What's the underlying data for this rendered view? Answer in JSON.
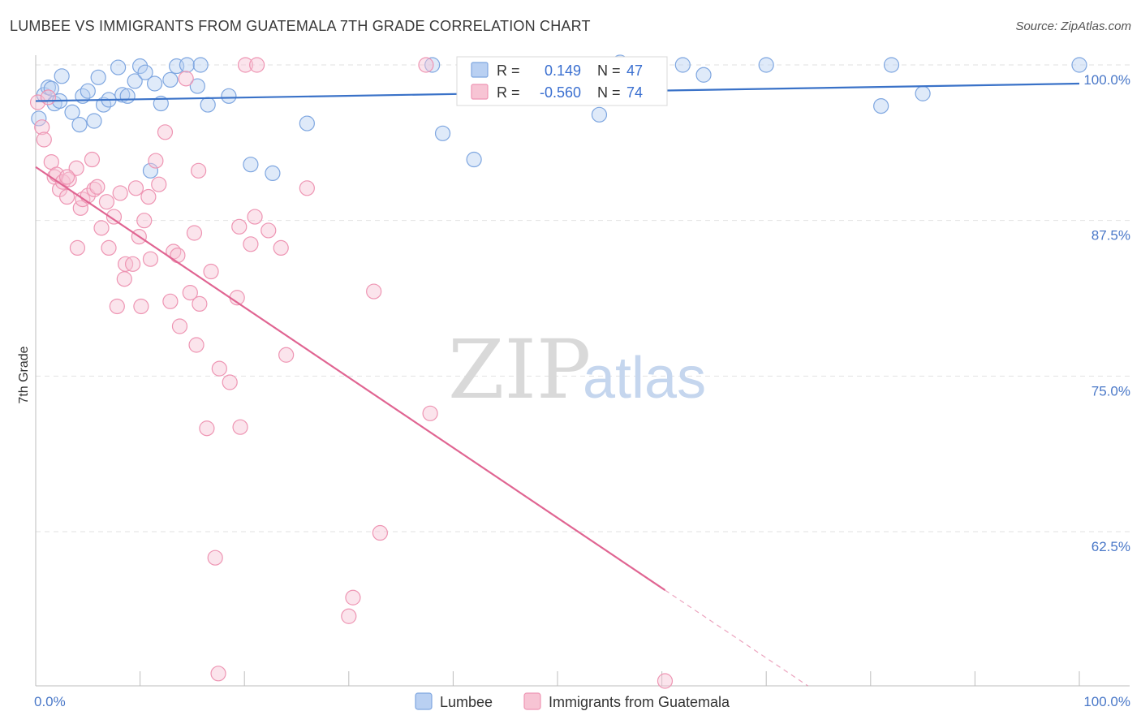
{
  "header": {
    "title": "LUMBEE VS IMMIGRANTS FROM GUATEMALA 7TH GRADE CORRELATION CHART",
    "source": "Source: ZipAtlas.com"
  },
  "watermark": {
    "zip": "ZIP",
    "atlas": "atlas"
  },
  "colors": {
    "lumbee_fill": "#b9d0f2",
    "lumbee_stroke": "#7ea6e0",
    "lumbee_line": "#3a72c8",
    "guatemala_fill": "#f7c4d4",
    "guatemala_stroke": "#ee95b3",
    "guatemala_line": "#e06592",
    "tick_text": "#4a78c8",
    "grid": "#e2e2e2"
  },
  "stats": {
    "r_label": "R =",
    "n_label": "N =",
    "rows": [
      {
        "series": "lumbee",
        "r": "0.149",
        "n": "47"
      },
      {
        "series": "guatemala",
        "r": "-0.560",
        "n": "74"
      }
    ]
  },
  "chart_data": {
    "type": "scatter",
    "title": "LUMBEE VS IMMIGRANTS FROM GUATEMALA 7TH GRADE CORRELATION CHART",
    "xlabel": "",
    "ylabel": "7th Grade",
    "xlim": [
      0,
      100
    ],
    "ylim": [
      52,
      100.5
    ],
    "x_tick_labels": [
      {
        "value": 0,
        "label": "0.0%"
      },
      {
        "value": 100,
        "label": "100.0%"
      }
    ],
    "x_minor_ticks": [
      0,
      10,
      20,
      30,
      40,
      50,
      60,
      70,
      80,
      90,
      100
    ],
    "y_ticks": [
      {
        "value": 100,
        "label": "100.0%"
      },
      {
        "value": 87.5,
        "label": "87.5%"
      },
      {
        "value": 75,
        "label": "75.0%"
      },
      {
        "value": 62.5,
        "label": "62.5%"
      }
    ],
    "grid": "horizontal dashed",
    "legend_position": "bottom-center",
    "series": [
      {
        "name": "Lumbee",
        "key": "lumbee",
        "points": [
          [
            0.3,
            95.7
          ],
          [
            0.8,
            97.6
          ],
          [
            1.2,
            98.2
          ],
          [
            1.5,
            98.1
          ],
          [
            1.8,
            96.9
          ],
          [
            2.3,
            97.1
          ],
          [
            2.5,
            99.1
          ],
          [
            3.5,
            96.2
          ],
          [
            4.2,
            95.2
          ],
          [
            4.5,
            97.5
          ],
          [
            5.0,
            97.9
          ],
          [
            5.6,
            95.5
          ],
          [
            6.0,
            99.0
          ],
          [
            6.5,
            96.8
          ],
          [
            7.0,
            97.2
          ],
          [
            7.9,
            99.8
          ],
          [
            8.3,
            97.6
          ],
          [
            8.8,
            97.5
          ],
          [
            9.5,
            98.7
          ],
          [
            10.0,
            99.9
          ],
          [
            10.5,
            99.4
          ],
          [
            11.0,
            91.5
          ],
          [
            11.4,
            98.5
          ],
          [
            12.0,
            96.9
          ],
          [
            12.9,
            98.8
          ],
          [
            13.5,
            99.9
          ],
          [
            14.5,
            100.0
          ],
          [
            15.8,
            100.0
          ],
          [
            15.5,
            98.3
          ],
          [
            16.5,
            96.8
          ],
          [
            18.5,
            97.5
          ],
          [
            20.6,
            92.0
          ],
          [
            22.7,
            91.3
          ],
          [
            26.0,
            95.3
          ],
          [
            38.0,
            100.0
          ],
          [
            39.0,
            94.5
          ],
          [
            42.0,
            92.4
          ],
          [
            53.0,
            98.6
          ],
          [
            54.0,
            96.0
          ],
          [
            56.0,
            100.2
          ],
          [
            62.0,
            100.0
          ],
          [
            70.0,
            100.0
          ],
          [
            64.0,
            99.2
          ],
          [
            82.0,
            100.0
          ],
          [
            81.0,
            96.7
          ],
          [
            85.0,
            97.7
          ],
          [
            100.0,
            100.0
          ]
        ],
        "trend": {
          "x0": 0,
          "y0": 97.1,
          "x1": 100,
          "y1": 98.5
        }
      },
      {
        "name": "Immigrants from Guatemala",
        "key": "guatemala",
        "points": [
          [
            0.2,
            97.0
          ],
          [
            0.6,
            95.0
          ],
          [
            0.8,
            94.0
          ],
          [
            1.2,
            97.4
          ],
          [
            1.5,
            92.2
          ],
          [
            1.8,
            91.0
          ],
          [
            2.0,
            91.2
          ],
          [
            2.3,
            90.0
          ],
          [
            2.6,
            90.6
          ],
          [
            3.0,
            89.4
          ],
          [
            3.2,
            90.8
          ],
          [
            3.9,
            91.7
          ],
          [
            4.0,
            85.3
          ],
          [
            4.3,
            88.5
          ],
          [
            4.5,
            89.2
          ],
          [
            5.0,
            89.5
          ],
          [
            5.4,
            92.4
          ],
          [
            5.6,
            90.0
          ],
          [
            5.9,
            90.2
          ],
          [
            6.3,
            86.9
          ],
          [
            6.8,
            89.0
          ],
          [
            7.0,
            85.3
          ],
          [
            7.5,
            87.8
          ],
          [
            7.8,
            80.6
          ],
          [
            8.1,
            89.7
          ],
          [
            8.5,
            82.8
          ],
          [
            8.6,
            84.0
          ],
          [
            9.3,
            84.0
          ],
          [
            9.6,
            90.1
          ],
          [
            9.9,
            86.2
          ],
          [
            10.1,
            80.6
          ],
          [
            10.4,
            87.5
          ],
          [
            10.8,
            89.4
          ],
          [
            11.0,
            84.4
          ],
          [
            11.5,
            92.3
          ],
          [
            11.8,
            90.4
          ],
          [
            12.4,
            94.6
          ],
          [
            12.9,
            81.0
          ],
          [
            13.2,
            85.0
          ],
          [
            13.6,
            84.7
          ],
          [
            13.8,
            79.0
          ],
          [
            14.4,
            98.9
          ],
          [
            14.8,
            81.7
          ],
          [
            15.2,
            86.5
          ],
          [
            15.4,
            77.5
          ],
          [
            15.6,
            91.5
          ],
          [
            15.7,
            80.8
          ],
          [
            16.4,
            70.8
          ],
          [
            16.8,
            83.4
          ],
          [
            17.2,
            60.4
          ],
          [
            17.5,
            51.1
          ],
          [
            17.6,
            75.6
          ],
          [
            18.6,
            74.5
          ],
          [
            19.3,
            81.3
          ],
          [
            19.5,
            87.0
          ],
          [
            19.6,
            70.9
          ],
          [
            20.1,
            100.0
          ],
          [
            20.6,
            85.6
          ],
          [
            21.0,
            87.8
          ],
          [
            21.2,
            100.0
          ],
          [
            22.3,
            86.7
          ],
          [
            23.5,
            85.3
          ],
          [
            24.0,
            76.7
          ],
          [
            26.0,
            90.1
          ],
          [
            30.0,
            55.7
          ],
          [
            30.4,
            57.2
          ],
          [
            32.4,
            81.8
          ],
          [
            33.0,
            62.4
          ],
          [
            37.4,
            100.0
          ],
          [
            37.8,
            72.0
          ],
          [
            58.0,
            97.6
          ],
          [
            56.5,
            99.8
          ],
          [
            60.3,
            50.5
          ],
          [
            3.0,
            91.0
          ]
        ],
        "trend": {
          "x0": 0,
          "y0": 91.8,
          "x1": 60.3,
          "y1": 57.8
        },
        "trend_dashed": {
          "x0": 60.3,
          "y0": 57.8,
          "x1": 74,
          "y1": 50.1
        }
      }
    ]
  },
  "legend": {
    "items": [
      {
        "key": "lumbee",
        "label": "Lumbee"
      },
      {
        "key": "guatemala",
        "label": "Immigrants from Guatemala"
      }
    ]
  }
}
